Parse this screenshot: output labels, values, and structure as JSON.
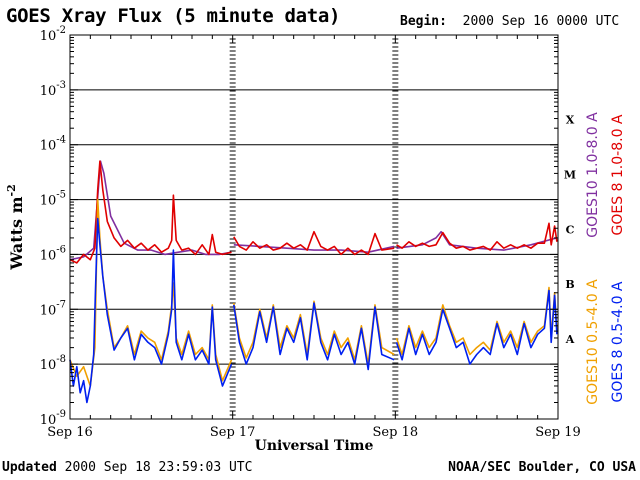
{
  "header": {
    "title": "GOES Xray Flux (5 minute data)",
    "begin_label": "Begin:",
    "begin_value": "2000 Sep 16 0000 UTC"
  },
  "footer": {
    "updated_label": "Updated",
    "updated_value": "2000 Sep 18 23:59:03 UTC",
    "credit": "NOAA/SEC Boulder, CO USA"
  },
  "colors": {
    "goes10_long": "#8030a0",
    "goes8_long": "#e00000",
    "goes10_short": "#f0a000",
    "goes8_short": "#0020f0"
  },
  "chart_data": {
    "type": "line",
    "xlabel": "Universal Time",
    "ylabel": "Watts m",
    "ylabel_superscript": "-2",
    "yscale": "log",
    "ylim": [
      1e-09,
      0.01
    ],
    "yticks": [
      {
        "base": "10",
        "exp": "-9"
      },
      {
        "base": "10",
        "exp": "-8"
      },
      {
        "base": "10",
        "exp": "-7"
      },
      {
        "base": "10",
        "exp": "-6"
      },
      {
        "base": "10",
        "exp": "-5"
      },
      {
        "base": "10",
        "exp": "-4"
      },
      {
        "base": "10",
        "exp": "-3"
      },
      {
        "base": "10",
        "exp": "-2"
      }
    ],
    "xlim": [
      "2000-09-16T00:00",
      "2000-09-19T00:00"
    ],
    "xticks": [
      "Sep 16",
      "Sep 17",
      "Sep 18",
      "Sep 19"
    ],
    "grid": true,
    "flare_classes": [
      {
        "label": "A",
        "flux": 3e-08
      },
      {
        "label": "B",
        "flux": 3e-07
      },
      {
        "label": "C",
        "flux": 3e-06
      },
      {
        "label": "M",
        "flux": 3e-05
      },
      {
        "label": "X",
        "flux": 0.0003
      }
    ],
    "series": [
      {
        "name": "GOES10 1.0-8.0 A",
        "color": "#8030a0",
        "x": [
          "2000-09-16T00:00",
          "2000-09-16T02:00",
          "2000-09-16T03:30",
          "2000-09-16T04:00",
          "2000-09-16T04:30",
          "2000-09-16T05:00",
          "2000-09-16T06:00",
          "2000-09-16T08:00",
          "2000-09-16T10:00",
          "2000-09-16T12:00",
          "2000-09-16T14:00",
          "2000-09-16T16:00",
          "2000-09-16T18:00",
          "2000-09-16T20:00",
          "2000-09-16T22:00",
          "2000-09-16T23:50"
        ],
        "y": [
          8e-07,
          9e-07,
          1.3e-06,
          8e-06,
          5e-05,
          3e-05,
          5e-06,
          1.6e-06,
          1.2e-06,
          1.2e-06,
          1e-06,
          1.1e-06,
          1.2e-06,
          1e-06,
          1e-06,
          1.1e-06
        ]
      },
      {
        "name": "GOES10 1.0-8.0 A",
        "color": "#8030a0",
        "x": [
          "2000-09-17T00:10",
          "2000-09-17T04:00",
          "2000-09-17T08:00",
          "2000-09-17T12:00",
          "2000-09-17T16:00",
          "2000-09-17T20:00",
          "2000-09-17T23:50"
        ],
        "y": [
          1.5e-06,
          1.4e-06,
          1.3e-06,
          1.2e-06,
          1.2e-06,
          1.1e-06,
          1.4e-06
        ],
        "hidden_under": "GOES 8 1.0-8.0 A"
      },
      {
        "name": "GOES10 1.0-8.0 A",
        "color": "#8030a0",
        "x": [
          "2000-09-18T00:10",
          "2000-09-18T04:00",
          "2000-09-18T06:00",
          "2000-09-18T06:45",
          "2000-09-18T08:00",
          "2000-09-18T12:00",
          "2000-09-18T16:00",
          "2000-09-18T20:00",
          "2000-09-18T23:50"
        ],
        "y": [
          1.3e-06,
          1.5e-06,
          2e-06,
          2.6e-06,
          1.5e-06,
          1.3e-06,
          1.2e-06,
          1.5e-06,
          2e-06
        ]
      },
      {
        "name": "GOES 8 1.0-8.0 A",
        "color": "#e00000",
        "x": [
          "2000-09-16T00:00",
          "2000-09-16T01:00",
          "2000-09-16T02:00",
          "2000-09-16T03:00",
          "2000-09-16T03:40",
          "2000-09-16T04:05",
          "2000-09-16T04:25",
          "2000-09-16T04:50",
          "2000-09-16T05:30",
          "2000-09-16T06:30",
          "2000-09-16T07:30",
          "2000-09-16T08:30",
          "2000-09-16T09:30",
          "2000-09-16T10:30",
          "2000-09-16T11:30",
          "2000-09-16T12:30",
          "2000-09-16T13:30",
          "2000-09-16T14:30",
          "2000-09-16T15:00",
          "2000-09-16T15:15",
          "2000-09-16T15:40",
          "2000-09-16T16:30",
          "2000-09-16T17:30",
          "2000-09-16T18:30",
          "2000-09-16T19:30",
          "2000-09-16T20:30",
          "2000-09-16T21:00",
          "2000-09-16T21:30",
          "2000-09-16T22:30",
          "2000-09-16T23:50"
        ],
        "y": [
          8e-07,
          7e-07,
          1e-06,
          8e-07,
          1.3e-06,
          1.5e-05,
          5e-05,
          1.5e-05,
          4e-06,
          2e-06,
          1.4e-06,
          1.8e-06,
          1.3e-06,
          1.6e-06,
          1.2e-06,
          1.5e-06,
          1.1e-06,
          1.3e-06,
          1.8e-06,
          1.2e-05,
          1.8e-06,
          1.2e-06,
          1.3e-06,
          1e-06,
          1.5e-06,
          1e-06,
          2.3e-06,
          1.1e-06,
          1e-06,
          1.1e-06
        ]
      },
      {
        "name": "GOES 8 1.0-8.0 A",
        "color": "#e00000",
        "x": [
          "2000-09-17T00:10",
          "2000-09-17T01:00",
          "2000-09-17T02:00",
          "2000-09-17T03:00",
          "2000-09-17T04:00",
          "2000-09-17T05:00",
          "2000-09-17T06:00",
          "2000-09-17T07:00",
          "2000-09-17T08:00",
          "2000-09-17T09:00",
          "2000-09-17T10:00",
          "2000-09-17T11:00",
          "2000-09-17T12:00",
          "2000-09-17T13:00",
          "2000-09-17T14:00",
          "2000-09-17T15:00",
          "2000-09-17T16:00",
          "2000-09-17T17:00",
          "2000-09-17T18:00",
          "2000-09-17T19:00",
          "2000-09-17T20:00",
          "2000-09-17T21:00",
          "2000-09-17T22:00",
          "2000-09-17T23:50"
        ],
        "y": [
          2.1e-06,
          1.4e-06,
          1.2e-06,
          1.7e-06,
          1.3e-06,
          1.5e-06,
          1.2e-06,
          1.3e-06,
          1.6e-06,
          1.3e-06,
          1.5e-06,
          1.2e-06,
          2.6e-06,
          1.4e-06,
          1.2e-06,
          1.4e-06,
          1e-06,
          1.3e-06,
          1e-06,
          1.2e-06,
          1e-06,
          2.4e-06,
          1.2e-06,
          1.3e-06
        ]
      },
      {
        "name": "GOES 8 1.0-8.0 A",
        "color": "#e00000",
        "x": [
          "2000-09-18T00:10",
          "2000-09-18T01:00",
          "2000-09-18T02:00",
          "2000-09-18T03:00",
          "2000-09-18T04:00",
          "2000-09-18T05:00",
          "2000-09-18T06:00",
          "2000-09-18T07:00",
          "2000-09-18T08:00",
          "2000-09-18T09:00",
          "2000-09-18T10:00",
          "2000-09-18T11:00",
          "2000-09-18T12:00",
          "2000-09-18T13:00",
          "2000-09-18T14:00",
          "2000-09-18T15:00",
          "2000-09-18T16:00",
          "2000-09-18T17:00",
          "2000-09-18T18:00",
          "2000-09-18T19:00",
          "2000-09-18T20:00",
          "2000-09-18T21:00",
          "2000-09-18T22:00",
          "2000-09-18T22:40",
          "2000-09-18T23:00",
          "2000-09-18T23:30",
          "2000-09-18T23:50"
        ],
        "y": [
          1.5e-06,
          1.3e-06,
          1.7e-06,
          1.4e-06,
          1.6e-06,
          1.4e-06,
          1.5e-06,
          2.5e-06,
          1.6e-06,
          1.3e-06,
          1.4e-06,
          1.2e-06,
          1.3e-06,
          1.4e-06,
          1.2e-06,
          1.7e-06,
          1.3e-06,
          1.5e-06,
          1.3e-06,
          1.5e-06,
          1.3e-06,
          1.6e-06,
          1.6e-06,
          3.7e-06,
          1.5e-06,
          3.3e-06,
          1.7e-06
        ]
      },
      {
        "name": "GOES10 0.5-4.0 A",
        "color": "#f0a000",
        "x": [
          "2000-09-16T00:00",
          "2000-09-16T01:00",
          "2000-09-16T02:00",
          "2000-09-16T03:00",
          "2000-09-16T03:40",
          "2000-09-16T04:05",
          "2000-09-16T04:25",
          "2000-09-16T04:50",
          "2000-09-16T05:30",
          "2000-09-16T06:30",
          "2000-09-16T07:30",
          "2000-09-16T08:30",
          "2000-09-16T09:30",
          "2000-09-16T10:30",
          "2000-09-16T11:30",
          "2000-09-16T12:30",
          "2000-09-16T13:30",
          "2000-09-16T14:30",
          "2000-09-16T15:00",
          "2000-09-16T15:15",
          "2000-09-16T15:40",
          "2000-09-16T16:30",
          "2000-09-16T17:30",
          "2000-09-16T18:30",
          "2000-09-16T19:30",
          "2000-09-16T20:30",
          "2000-09-16T21:00",
          "2000-09-16T21:30",
          "2000-09-16T22:30",
          "2000-09-16T23:50"
        ],
        "y": [
          1.2e-08,
          6e-09,
          9e-09,
          4e-09,
          2e-08,
          1e-05,
          2e-06,
          4e-07,
          1e-07,
          2e-08,
          3e-08,
          5e-08,
          1.5e-08,
          4e-08,
          3e-08,
          2.5e-08,
          1.2e-08,
          4e-08,
          1.2e-07,
          3e-07,
          3e-08,
          1.5e-08,
          4e-08,
          1.5e-08,
          2e-08,
          1.2e-08,
          1.2e-07,
          1.5e-08,
          5e-09,
          1.2e-08
        ]
      },
      {
        "name": "GOES10 0.5-4.0 A",
        "color": "#f0a000",
        "x": [
          "2000-09-17T00:10",
          "2000-09-17T01:00",
          "2000-09-17T02:00",
          "2000-09-17T03:00",
          "2000-09-17T04:00",
          "2000-09-17T05:00",
          "2000-09-17T06:00",
          "2000-09-17T07:00",
          "2000-09-17T08:00",
          "2000-09-17T09:00",
          "2000-09-17T10:00",
          "2000-09-17T11:00",
          "2000-09-17T12:00",
          "2000-09-17T13:00",
          "2000-09-17T14:00",
          "2000-09-17T15:00",
          "2000-09-17T16:00",
          "2000-09-17T17:00",
          "2000-09-17T18:00",
          "2000-09-17T19:00",
          "2000-09-17T20:00",
          "2000-09-17T21:00",
          "2000-09-17T22:00",
          "2000-09-17T23:50"
        ],
        "y": [
          1.3e-07,
          3e-08,
          1.3e-08,
          2.5e-08,
          1e-07,
          3e-08,
          1.2e-07,
          2e-08,
          5e-08,
          3e-08,
          8e-08,
          1.5e-08,
          1.4e-07,
          3e-08,
          1.5e-08,
          4e-08,
          2e-08,
          3e-08,
          1.2e-08,
          5e-08,
          1e-08,
          1.2e-07,
          2e-08,
          1.5e-08
        ]
      },
      {
        "name": "GOES10 0.5-4.0 A",
        "color": "#f0a000",
        "x": [
          "2000-09-18T00:10",
          "2000-09-18T01:00",
          "2000-09-18T02:00",
          "2000-09-18T03:00",
          "2000-09-18T04:00",
          "2000-09-18T05:00",
          "2000-09-18T06:00",
          "2000-09-18T07:00",
          "2000-09-18T08:00",
          "2000-09-18T09:00",
          "2000-09-18T10:00",
          "2000-09-18T11:00",
          "2000-09-18T12:00",
          "2000-09-18T13:00",
          "2000-09-18T14:00",
          "2000-09-18T15:00",
          "2000-09-18T16:00",
          "2000-09-18T17:00",
          "2000-09-18T18:00",
          "2000-09-18T19:00",
          "2000-09-18T20:00",
          "2000-09-18T21:00",
          "2000-09-18T22:00",
          "2000-09-18T22:40",
          "2000-09-18T23:00",
          "2000-09-18T23:30",
          "2000-09-18T23:50"
        ],
        "y": [
          3e-08,
          1.5e-08,
          5e-08,
          2e-08,
          4e-08,
          2e-08,
          3e-08,
          1.2e-07,
          5e-08,
          2.5e-08,
          3e-08,
          1.5e-08,
          2e-08,
          2.5e-08,
          1.8e-08,
          6e-08,
          2.5e-08,
          4e-08,
          2e-08,
          6e-08,
          2.5e-08,
          4e-08,
          5e-08,
          2.5e-07,
          3e-08,
          2e-07,
          4e-08
        ]
      },
      {
        "name": "GOES 8 0.5-4.0 A",
        "color": "#0020f0",
        "x": [
          "2000-09-16T00:00",
          "2000-09-16T00:30",
          "2000-09-16T01:00",
          "2000-09-16T01:30",
          "2000-09-16T02:00",
          "2000-09-16T02:30",
          "2000-09-16T03:00",
          "2000-09-16T03:30",
          "2000-09-16T03:45",
          "2000-09-16T04:05",
          "2000-09-16T04:25",
          "2000-09-16T04:50",
          "2000-09-16T05:30",
          "2000-09-16T06:30",
          "2000-09-16T07:30",
          "2000-09-16T08:30",
          "2000-09-16T09:30",
          "2000-09-16T10:30",
          "2000-09-16T11:30",
          "2000-09-16T12:30",
          "2000-09-16T13:30",
          "2000-09-16T14:30",
          "2000-09-16T15:00",
          "2000-09-16T15:15",
          "2000-09-16T15:40",
          "2000-09-16T16:30",
          "2000-09-16T17:30",
          "2000-09-16T18:30",
          "2000-09-16T19:30",
          "2000-09-16T20:30",
          "2000-09-16T21:00",
          "2000-09-16T21:30",
          "2000-09-16T22:30",
          "2000-09-16T23:50"
        ],
        "y": [
          1.2e-08,
          4e-09,
          9e-09,
          3e-09,
          5e-09,
          2e-09,
          4e-09,
          1.5e-08,
          2e-07,
          4.5e-06,
          1.5e-06,
          4e-07,
          8e-08,
          1.8e-08,
          3e-08,
          4.5e-08,
          1.2e-08,
          3.5e-08,
          2.5e-08,
          2e-08,
          1e-08,
          3.5e-08,
          1e-07,
          1.2e-06,
          2.5e-08,
          1.2e-08,
          3.5e-08,
          1.2e-08,
          1.8e-08,
          1e-08,
          1.1e-07,
          1.2e-08,
          4e-09,
          1e-08
        ]
      },
      {
        "name": "GOES 8 0.5-4.0 A",
        "color": "#0020f0",
        "x": [
          "2000-09-17T00:10",
          "2000-09-17T01:00",
          "2000-09-17T02:00",
          "2000-09-17T03:00",
          "2000-09-17T04:00",
          "2000-09-17T05:00",
          "2000-09-17T06:00",
          "2000-09-17T07:00",
          "2000-09-17T08:00",
          "2000-09-17T09:00",
          "2000-09-17T10:00",
          "2000-09-17T11:00",
          "2000-09-17T12:00",
          "2000-09-17T13:00",
          "2000-09-17T14:00",
          "2000-09-17T15:00",
          "2000-09-17T16:00",
          "2000-09-17T17:00",
          "2000-09-17T18:00",
          "2000-09-17T19:00",
          "2000-09-17T20:00",
          "2000-09-17T21:00",
          "2000-09-17T22:00",
          "2000-09-17T23:50"
        ],
        "y": [
          1.2e-07,
          2.5e-08,
          1e-08,
          2e-08,
          9e-08,
          2.5e-08,
          1.1e-07,
          1.5e-08,
          4.5e-08,
          2.5e-08,
          7e-08,
          1.2e-08,
          1.3e-07,
          2.5e-08,
          1.2e-08,
          3.5e-08,
          1.5e-08,
          2.5e-08,
          1e-08,
          4.5e-08,
          8e-09,
          1.1e-07,
          1.5e-08,
          1.2e-08
        ]
      },
      {
        "name": "GOES 8 0.5-4.0 A",
        "color": "#0020f0",
        "x": [
          "2000-09-18T00:10",
          "2000-09-18T01:00",
          "2000-09-18T02:00",
          "2000-09-18T03:00",
          "2000-09-18T04:00",
          "2000-09-18T05:00",
          "2000-09-18T06:00",
          "2000-09-18T07:00",
          "2000-09-18T08:00",
          "2000-09-18T09:00",
          "2000-09-18T10:00",
          "2000-09-18T11:00",
          "2000-09-18T12:00",
          "2000-09-18T13:00",
          "2000-09-18T14:00",
          "2000-09-18T15:00",
          "2000-09-18T16:00",
          "2000-09-18T17:00",
          "2000-09-18T18:00",
          "2000-09-18T19:00",
          "2000-09-18T20:00",
          "2000-09-18T21:00",
          "2000-09-18T22:00",
          "2000-09-18T22:40",
          "2000-09-18T23:00",
          "2000-09-18T23:30",
          "2000-09-18T23:50"
        ],
        "y": [
          2.5e-08,
          1.2e-08,
          4.5e-08,
          1.5e-08,
          3.5e-08,
          1.5e-08,
          2.5e-08,
          1e-07,
          4.5e-08,
          2e-08,
          2.5e-08,
          1e-08,
          1.5e-08,
          2e-08,
          1.5e-08,
          5.5e-08,
          2e-08,
          3.5e-08,
          1.5e-08,
          5.5e-08,
          2e-08,
          3.5e-08,
          4.5e-08,
          2.2e-07,
          2.5e-08,
          1.8e-07,
          3.5e-08
        ]
      }
    ],
    "legend": [
      {
        "label": "GOES10 1.0-8.0 A",
        "color": "#8030a0"
      },
      {
        "label": "GOES 8 1.0-8.0 A",
        "color": "#e00000"
      },
      {
        "label": "GOES10 0.5-4.0 A",
        "color": "#f0a000"
      },
      {
        "label": "GOES 8 0.5-4.0 A",
        "color": "#0020f0"
      }
    ],
    "legend_placement": "right, rotated vertically"
  }
}
